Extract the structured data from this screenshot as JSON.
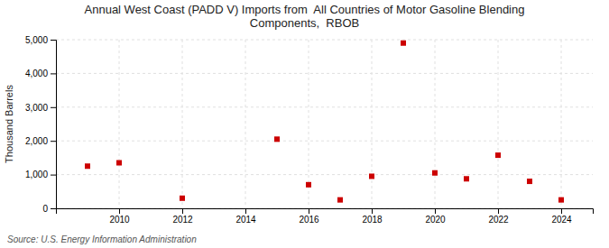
{
  "chart_data": {
    "type": "scatter",
    "title": "Annual West Coast (PADD V) Imports from  All Countries of Motor Gasoline Blending\nComponents,  RBOB",
    "ylabel": "Thousand Barrels",
    "source": "Source: U.S. Energy Information Administration",
    "x": [
      2009,
      2010,
      2012,
      2015,
      2016,
      2017,
      2018,
      2019,
      2020,
      2021,
      2022,
      2023,
      2024
    ],
    "values": [
      1250,
      1350,
      300,
      2050,
      700,
      250,
      950,
      4900,
      1050,
      875,
      1575,
      800,
      250
    ],
    "color": "#cc0000",
    "marker": "square",
    "xlim": [
      2008.0,
      2025.0
    ],
    "xticks": [
      2010,
      2012,
      2014,
      2016,
      2018,
      2020,
      2022,
      2024
    ],
    "ylim": [
      0,
      5000
    ],
    "yticks": [
      0,
      {
        "value": 1000,
        "label": "1,000"
      },
      {
        "value": 2000,
        "label": "2,000"
      },
      {
        "value": 3000,
        "label": "3,000"
      },
      {
        "value": 4000,
        "label": "4,000"
      },
      {
        "value": 5000,
        "label": "5,000"
      }
    ],
    "grid": true
  }
}
